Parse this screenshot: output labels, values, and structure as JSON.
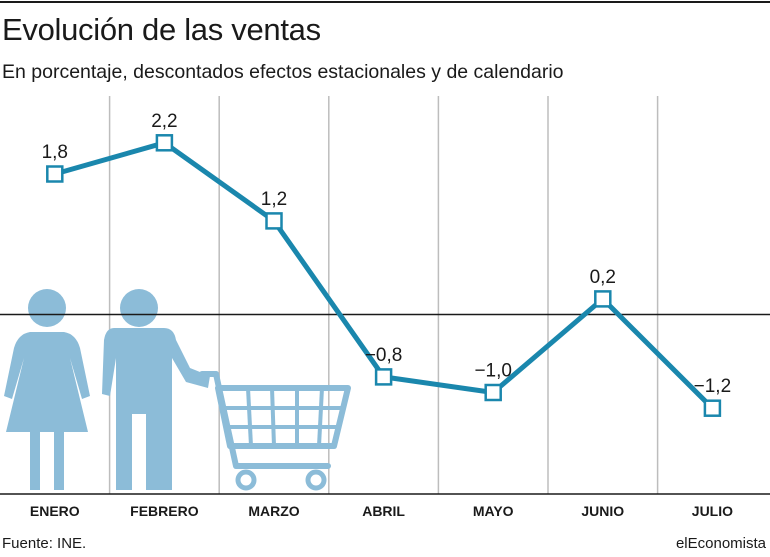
{
  "header": {
    "title": "Evolución de las ventas",
    "subtitle": "En porcentaje, descontados efectos estacionales y de calendario"
  },
  "footer": {
    "source": "Fuente: INE.",
    "brand": "elEconomista"
  },
  "colors": {
    "line": "#1a87ad",
    "illustration": "#8cbcd8",
    "grid": "#bdbdbd",
    "zero_line": "#1a1a1a",
    "text": "#1a1a1a"
  },
  "illustration": {
    "icons": [
      "woman-icon",
      "man-icon",
      "shopping-cart-icon"
    ]
  },
  "chart_data": {
    "type": "line",
    "categories": [
      "ENERO",
      "FEBRERO",
      "MARZO",
      "ABRIL",
      "MAYO",
      "JUNIO",
      "JULIO"
    ],
    "values": [
      1.8,
      2.2,
      1.2,
      -0.8,
      -1.0,
      0.2,
      -1.2
    ],
    "labels": [
      "1,8",
      "2,2",
      "1,2",
      "−0,8",
      "−1,0",
      "0,2",
      "−1,2"
    ],
    "title": "Evolución de las ventas",
    "subtitle": "En porcentaje, descontados efectos estacionales y de calendario",
    "xlabel": "",
    "ylabel": "",
    "ylim": [
      -2.3,
      2.8
    ],
    "zero_line": true,
    "grid": "vertical",
    "marker": "square"
  }
}
